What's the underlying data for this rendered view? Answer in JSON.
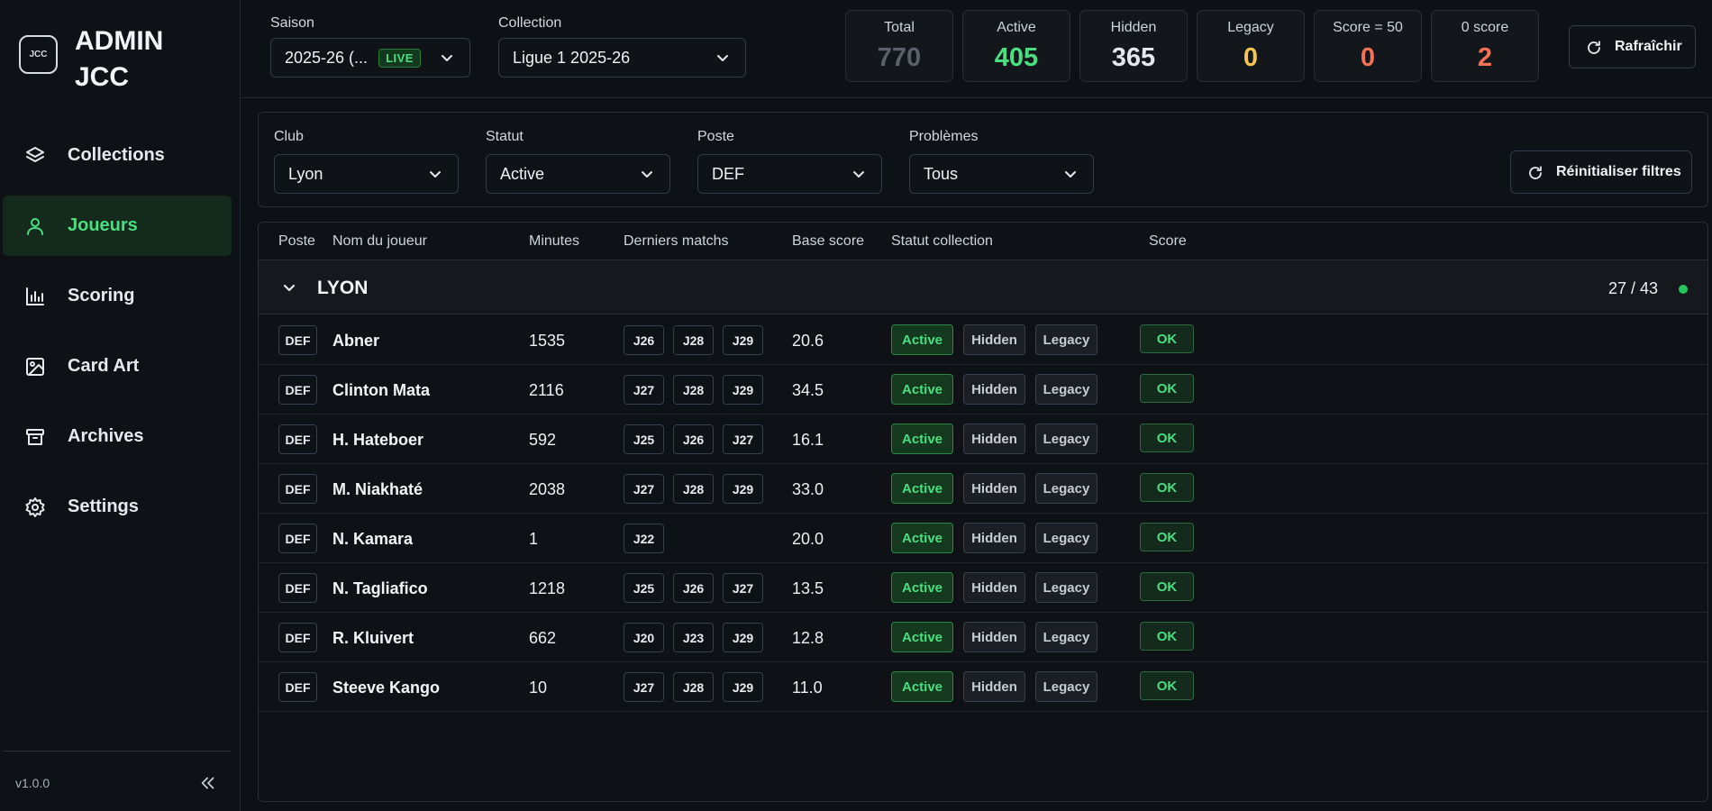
{
  "app": {
    "logo_text": "JCC",
    "brand_title": "ADMIN JCC",
    "version": "v1.0.0"
  },
  "sidebar": {
    "items": [
      {
        "label": "Collections",
        "icon": "layers-icon",
        "active": false
      },
      {
        "label": "Joueurs",
        "icon": "user-icon",
        "active": true
      },
      {
        "label": "Scoring",
        "icon": "bar-chart-icon",
        "active": false
      },
      {
        "label": "Card Art",
        "icon": "image-icon",
        "active": false
      },
      {
        "label": "Archives",
        "icon": "archive-icon",
        "active": false
      },
      {
        "label": "Settings",
        "icon": "gear-icon",
        "active": false
      }
    ]
  },
  "topbar": {
    "saison_label": "Saison",
    "saison_value": "2025-26 (...",
    "live_badge": "LIVE",
    "collection_label": "Collection",
    "collection_value": "Ligue 1 2025-26",
    "stats": [
      {
        "label": "Total",
        "value": "770",
        "color": "#5b6168"
      },
      {
        "label": "Active",
        "value": "405",
        "color": "#4ade80"
      },
      {
        "label": "Hidden",
        "value": "365",
        "color": "#e5e7eb"
      },
      {
        "label": "Legacy",
        "value": "0",
        "color": "#f5c451"
      },
      {
        "label": "Score = 50",
        "value": "0",
        "color": "#f87155"
      },
      {
        "label": "0 score",
        "value": "2",
        "color": "#f87155"
      }
    ],
    "refresh_label": "Rafraîchir"
  },
  "filters": {
    "club_label": "Club",
    "club_value": "Lyon",
    "statut_label": "Statut",
    "statut_value": "Active",
    "poste_label": "Poste",
    "poste_value": "DEF",
    "problemes_label": "Problèmes",
    "problemes_value": "Tous",
    "reset_label": "Réinitialiser filtres"
  },
  "table": {
    "headers": {
      "poste": "Poste",
      "nom": "Nom du joueur",
      "minutes": "Minutes",
      "matchs": "Derniers matchs",
      "base_score": "Base score",
      "statut": "Statut collection",
      "score": "Score"
    },
    "group": {
      "name": "LYON",
      "count": "27 / 43"
    },
    "status_labels": {
      "active": "Active",
      "hidden": "Hidden",
      "legacy": "Legacy"
    },
    "rows": [
      {
        "poste": "DEF",
        "name": "Abner",
        "minutes": "1535",
        "matches": [
          "J26",
          "J28",
          "J29"
        ],
        "base_score": "20.6",
        "score": "OK"
      },
      {
        "poste": "DEF",
        "name": "Clinton Mata",
        "minutes": "2116",
        "matches": [
          "J27",
          "J28",
          "J29"
        ],
        "base_score": "34.5",
        "score": "OK"
      },
      {
        "poste": "DEF",
        "name": "H. Hateboer",
        "minutes": "592",
        "matches": [
          "J25",
          "J26",
          "J27"
        ],
        "base_score": "16.1",
        "score": "OK"
      },
      {
        "poste": "DEF",
        "name": "M. Niakhaté",
        "minutes": "2038",
        "matches": [
          "J27",
          "J28",
          "J29"
        ],
        "base_score": "33.0",
        "score": "OK"
      },
      {
        "poste": "DEF",
        "name": "N. Kamara",
        "minutes": "1",
        "matches": [
          "J22"
        ],
        "base_score": "20.0",
        "score": "OK"
      },
      {
        "poste": "DEF",
        "name": "N. Tagliafico",
        "minutes": "1218",
        "matches": [
          "J25",
          "J26",
          "J27"
        ],
        "base_score": "13.5",
        "score": "OK"
      },
      {
        "poste": "DEF",
        "name": "R. Kluivert",
        "minutes": "662",
        "matches": [
          "J20",
          "J23",
          "J29"
        ],
        "base_score": "12.8",
        "score": "OK"
      },
      {
        "poste": "DEF",
        "name": "Steeve Kango",
        "minutes": "10",
        "matches": [
          "J27",
          "J28",
          "J29"
        ],
        "base_score": "11.0",
        "score": "OK"
      }
    ]
  }
}
